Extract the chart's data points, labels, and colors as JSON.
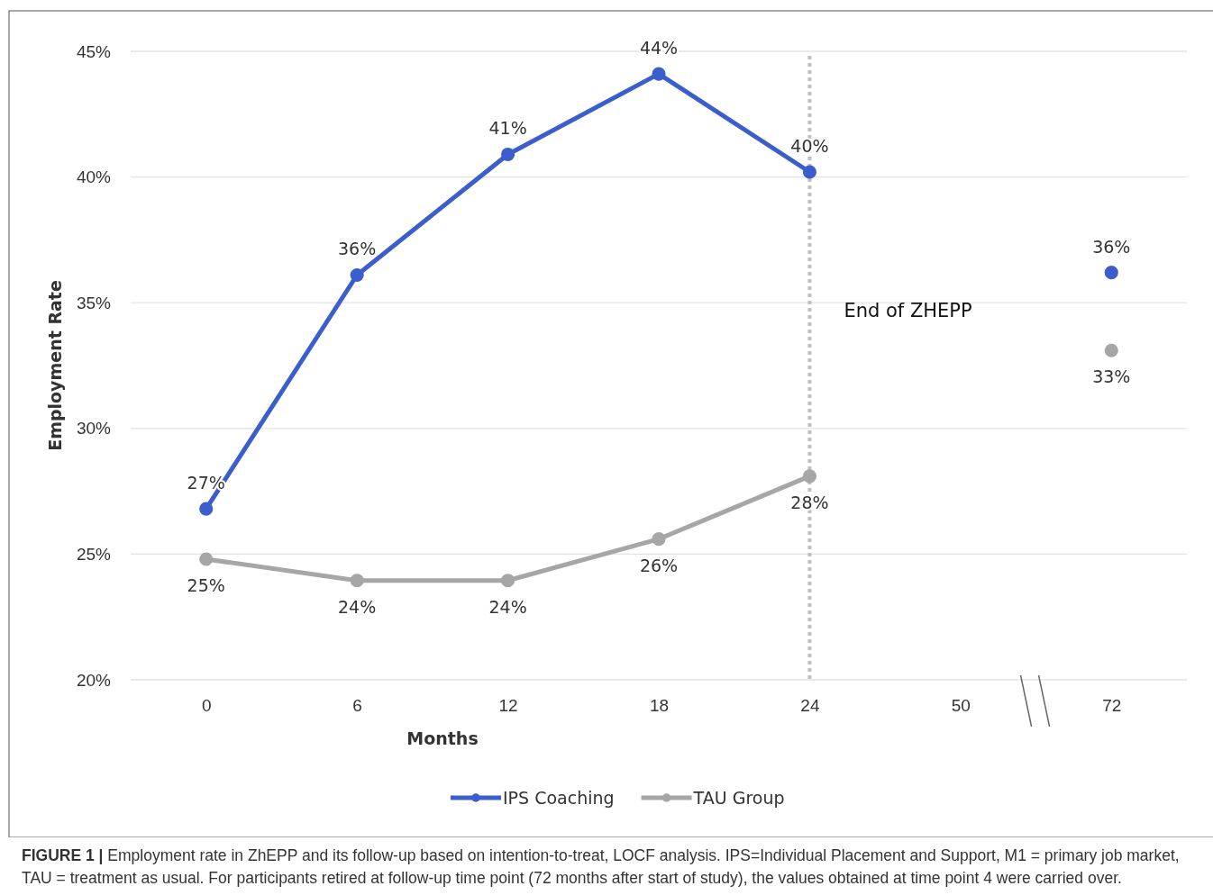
{
  "chart_data": {
    "type": "line",
    "xlabel": "Months",
    "ylabel": "Employment Rate",
    "categories": [
      "0",
      "6",
      "12",
      "18",
      "24",
      "50",
      "72"
    ],
    "ylim": [
      20,
      45
    ],
    "yticks": [
      {
        "value": 20,
        "label": "20%"
      },
      {
        "value": 25,
        "label": "25%"
      },
      {
        "value": 30,
        "label": "30%"
      },
      {
        "value": 35,
        "label": "35%"
      },
      {
        "value": 40,
        "label": "40%"
      },
      {
        "value": 45,
        "label": "45%"
      }
    ],
    "grid": "y",
    "legend": "bottom",
    "marker": "circle",
    "series": [
      {
        "name": "IPS Coaching",
        "color": "#3a5fcd",
        "values": [
          26.8,
          36.1,
          40.9,
          44.1,
          40.2,
          null,
          36.2
        ],
        "value_labels": [
          "27%",
          "36%",
          "41%",
          "44%",
          "40%",
          null,
          "36%"
        ]
      },
      {
        "name": "TAU Group",
        "color": "#a6a6a6",
        "values": [
          24.8,
          23.95,
          23.95,
          25.6,
          28.1,
          null,
          33.1
        ],
        "value_labels": [
          "25%",
          "24%",
          "24%",
          "26%",
          "28%",
          null,
          "33%"
        ]
      }
    ],
    "ref_lines": [
      {
        "axis": "x",
        "value": "24",
        "label": "End of ZHEPP",
        "color": "#bfbfbf",
        "line_style": "dotted"
      }
    ],
    "annotations": [
      "FIGURE 1 | Employment rate in ZhEPP and its follow-up based on intention-to-treat, LOCF analysis. IPS=Individual Placement and Support, M1 = primary job market, TAU = treatment as usual. For participants retired at follow-up time point (72 months after start of study), the values obtained at time point 4 were carried over."
    ]
  }
}
